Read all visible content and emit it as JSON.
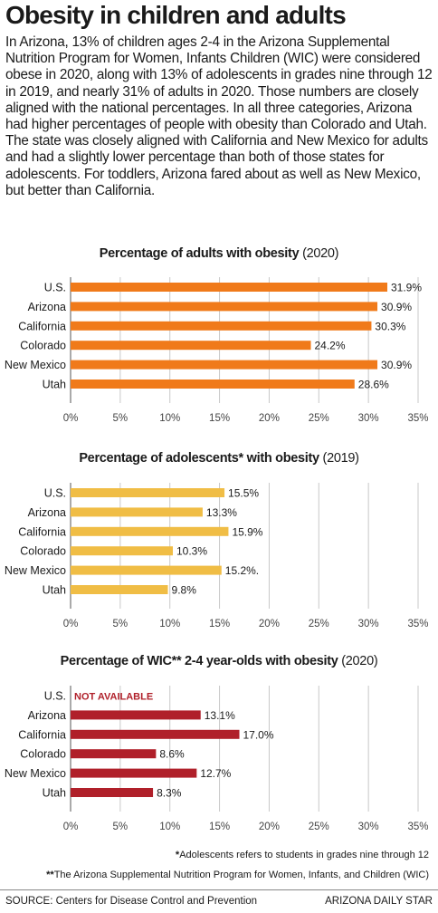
{
  "headline": "Obesity in children and adults",
  "intro": "In Arizona, 13% of children ages 2-4 in the Arizona Supplemental Nutrition Program for Women, Infants Children (WIC) were considered obese in 2020, along with 13% of adolescents in grades nine through 12 in 2019, and nearly 31% of adults in 2020. Those numbers are closely aligned with the national percentages. In all three categories, Arizona had higher percentages of people with obesity than Colorado and Utah. The state was closely aligned with California and New Mexico for adults and had a slightly lower percentage than both of those states for adolescents. For toddlers, Arizona fared about as well as New Mexico, but better than California.",
  "footnotes": {
    "adolescents_marker": "*",
    "adolescents": "Adolescents refers to students in grades nine through 12",
    "wic_marker": "**",
    "wic": "The Arizona Supplemental Nutrition Program for Women, Infants, and Children (WIC)"
  },
  "source": "SOURCE: Centers for Disease Control and Prevention",
  "credit": "ARIZONA DAILY STAR",
  "chart_data": [
    {
      "type": "bar",
      "orientation": "horizontal",
      "title": "Percentage of adults with obesity",
      "title_suffix": "(2020)",
      "color": "#f07a1a",
      "categories": [
        "U.S.",
        "Arizona",
        "California",
        "Colorado",
        "New Mexico",
        "Utah"
      ],
      "values": [
        31.9,
        30.9,
        30.3,
        24.2,
        30.9,
        28.6
      ],
      "value_labels": [
        "31.9%",
        "30.9%",
        "30.3%",
        "24.2%",
        "30.9%",
        "28.6%"
      ],
      "xlim": [
        0,
        35
      ],
      "xticks": [
        "0%",
        "5%",
        "10%",
        "15%",
        "20%",
        "25%",
        "30%",
        "35%"
      ],
      "grid": true
    },
    {
      "type": "bar",
      "orientation": "horizontal",
      "title": "Percentage of adolescents* with obesity",
      "title_suffix": "(2019)",
      "color": "#f0bd45",
      "categories": [
        "U.S.",
        "Arizona",
        "California",
        "Colorado",
        "New Mexico",
        "Utah"
      ],
      "values": [
        15.5,
        13.3,
        15.9,
        10.3,
        15.2,
        9.8
      ],
      "value_labels": [
        "15.5%",
        "13.3%",
        "15.9%",
        "10.3%",
        "15.2%.",
        "9.8%"
      ],
      "xlim": [
        0,
        35
      ],
      "xticks": [
        "0%",
        "5%",
        "10%",
        "15%",
        "20%",
        "25%",
        "30%",
        "35%"
      ],
      "grid": true
    },
    {
      "type": "bar",
      "orientation": "horizontal",
      "title": "Percentage of WIC** 2-4 year-olds with obesity",
      "title_suffix": "(2020)",
      "color": "#b0202a",
      "categories": [
        "U.S.",
        "Arizona",
        "California",
        "Colorado",
        "New Mexico",
        "Utah"
      ],
      "values": [
        null,
        13.1,
        17.0,
        8.6,
        12.7,
        8.3
      ],
      "value_labels": [
        "NOT AVAILABLE",
        "13.1%",
        "17.0%",
        "8.6%",
        "12.7%",
        "8.3%"
      ],
      "na_color": "#b0202a",
      "xlim": [
        0,
        35
      ],
      "xticks": [
        "0%",
        "5%",
        "10%",
        "15%",
        "20%",
        "25%",
        "30%",
        "35%"
      ],
      "grid": true
    }
  ]
}
